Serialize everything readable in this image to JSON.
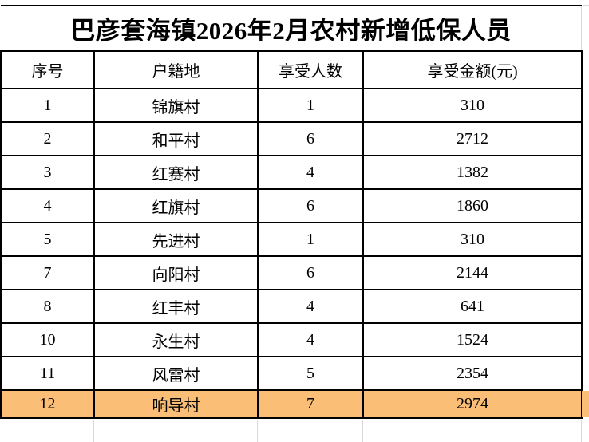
{
  "title": "巴彦套海镇2026年2月农村新增低保人员",
  "table": {
    "columns": [
      "序号",
      "户籍地",
      "享受人数",
      "享受金额(元)"
    ],
    "rows": [
      {
        "seq": "1",
        "village": "锦旗村",
        "people": "1",
        "amount": "310",
        "highlighted": false
      },
      {
        "seq": "2",
        "village": "和平村",
        "people": "6",
        "amount": "2712",
        "highlighted": false
      },
      {
        "seq": "3",
        "village": "红赛村",
        "people": "4",
        "amount": "1382",
        "highlighted": false
      },
      {
        "seq": "4",
        "village": "红旗村",
        "people": "6",
        "amount": "1860",
        "highlighted": false
      },
      {
        "seq": "5",
        "village": "先进村",
        "people": "1",
        "amount": "310",
        "highlighted": false
      },
      {
        "seq": "7",
        "village": "向阳村",
        "people": "6",
        "amount": "2144",
        "highlighted": false
      },
      {
        "seq": "8",
        "village": "红丰村",
        "people": "4",
        "amount": "641",
        "highlighted": false
      },
      {
        "seq": "10",
        "village": "永生村",
        "people": "4",
        "amount": "1524",
        "highlighted": false
      },
      {
        "seq": "11",
        "village": "风雷村",
        "people": "5",
        "amount": "2354",
        "highlighted": false
      },
      {
        "seq": "12",
        "village": "响导村",
        "people": "7",
        "amount": "2974",
        "highlighted": true
      }
    ]
  },
  "colors": {
    "highlight": "#FBBE76",
    "border": "#000000",
    "faint_grid": "#D9D9D9"
  }
}
